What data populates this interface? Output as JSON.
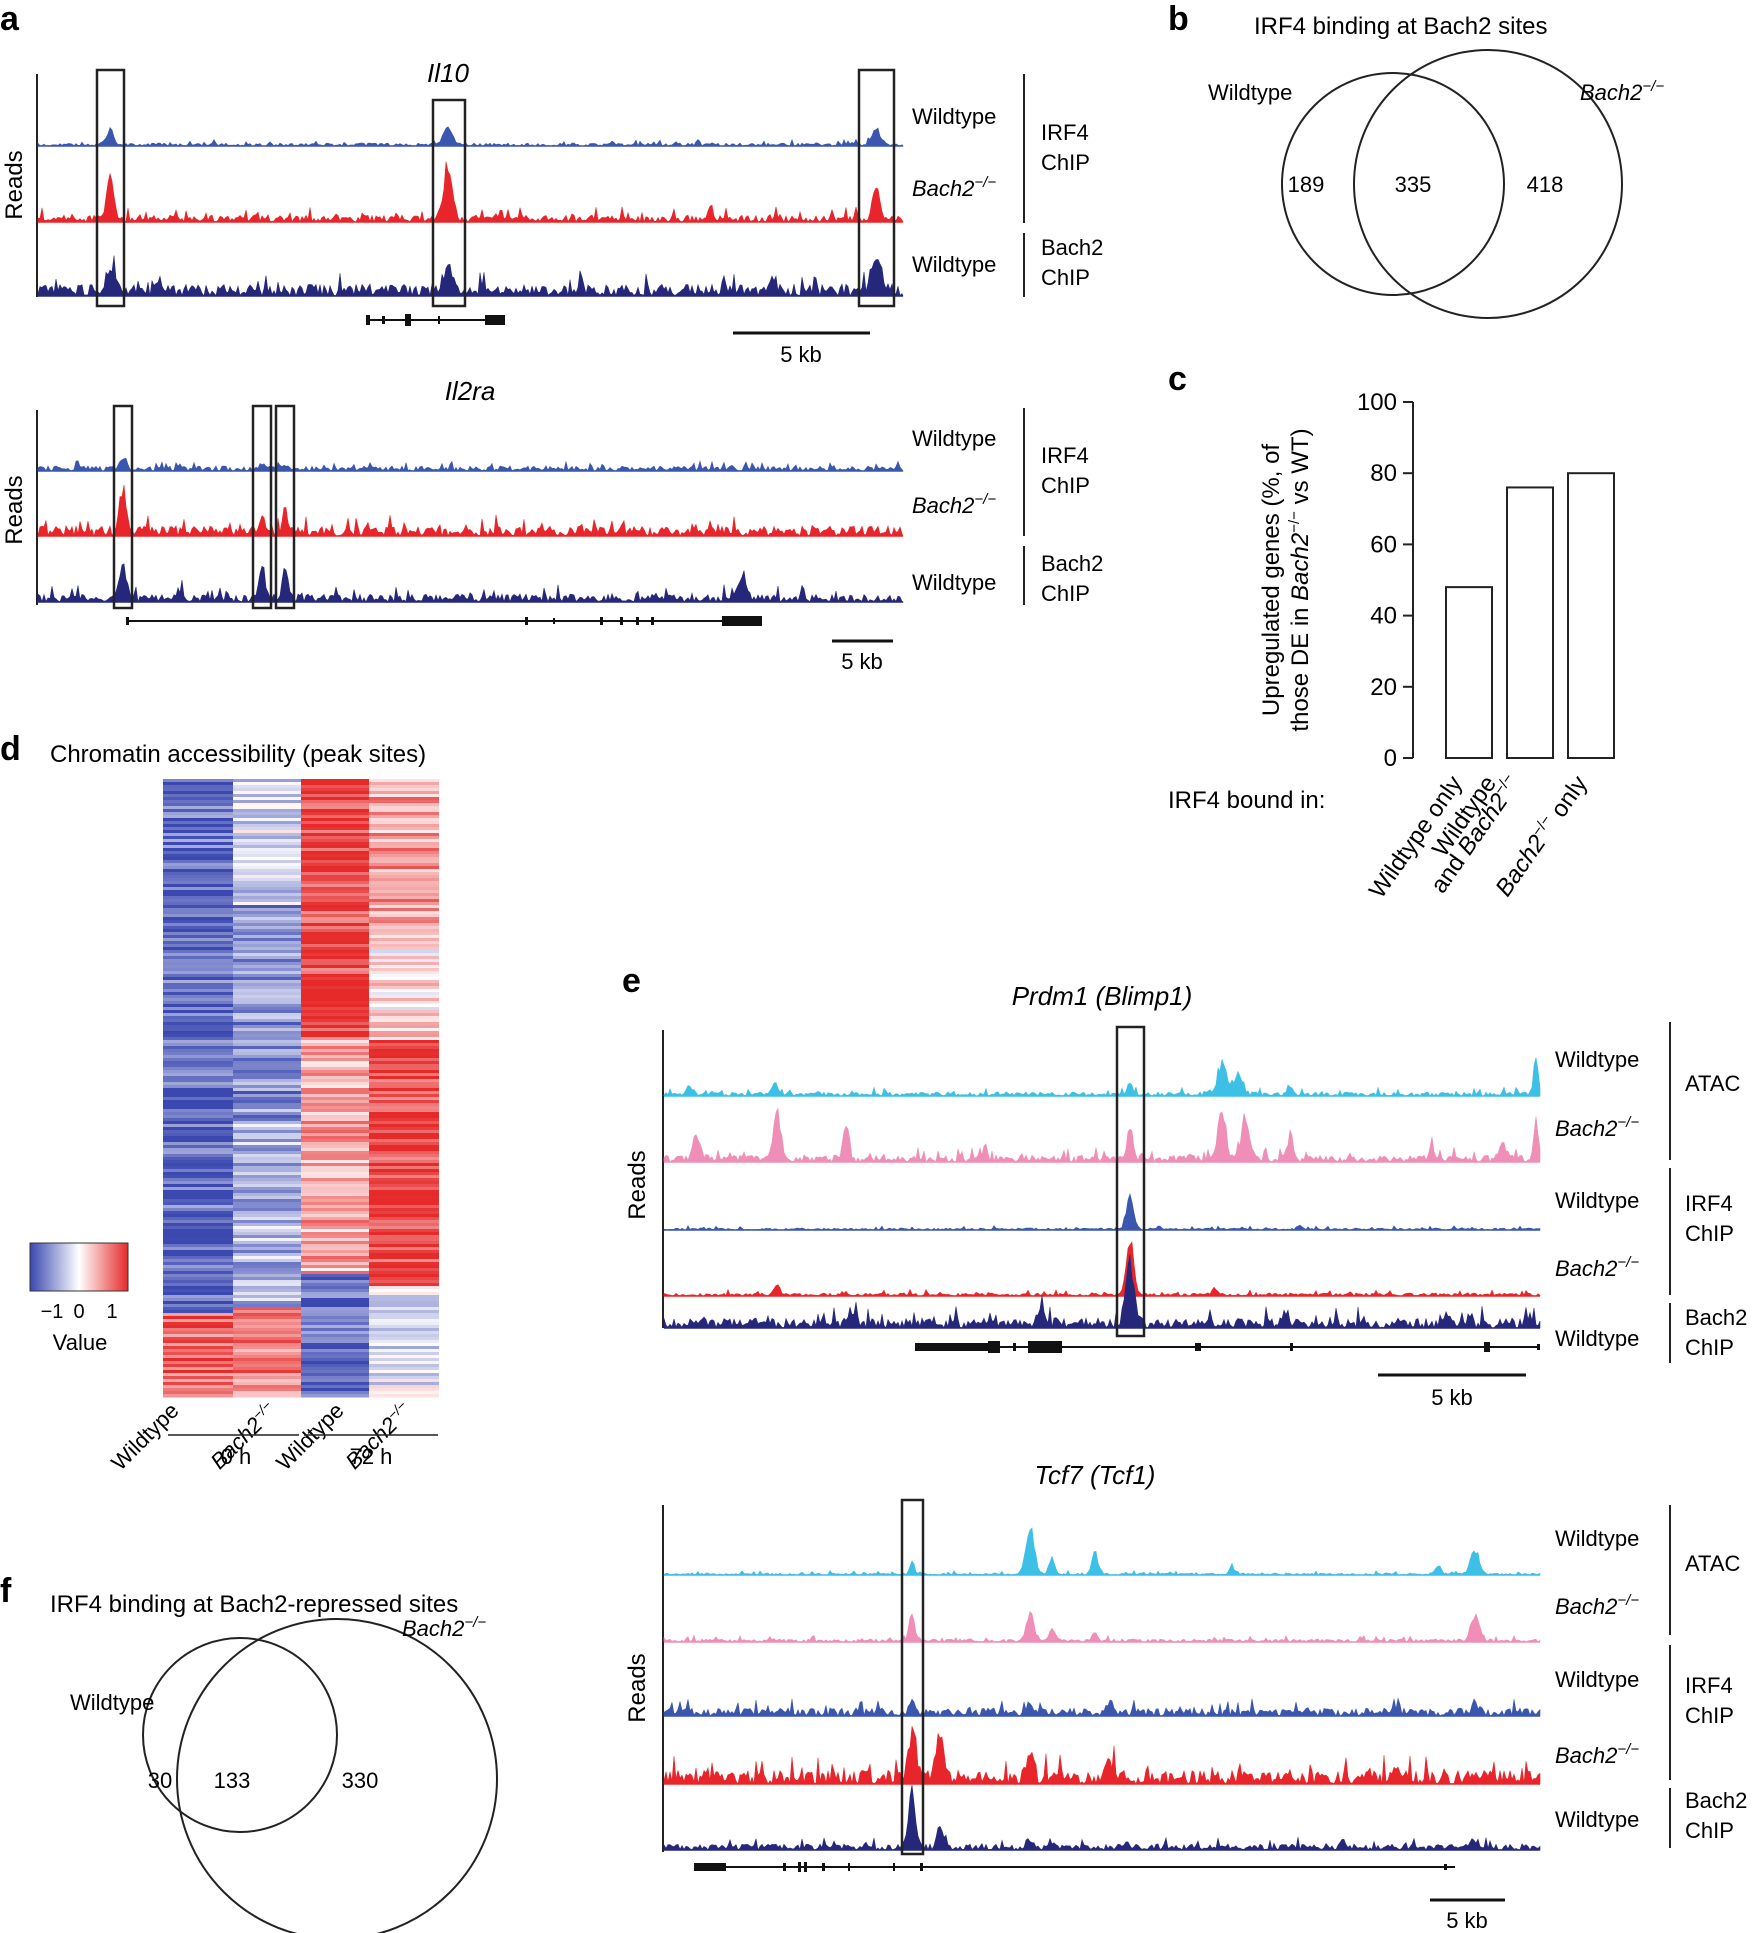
{
  "colors": {
    "wt_irf4": "#3a56ae",
    "ko_irf4": "#e8252a",
    "bach2": "#25287a",
    "atac_wt": "#3cc0e6",
    "atac_ko": "#ef8fb8",
    "heat_low": "#3a48b0",
    "heat_mid": "#ffffff",
    "heat_high": "#e62a2a"
  },
  "panels": {
    "a": "a",
    "b": "b",
    "c": "c",
    "d": "d",
    "e": "e",
    "f": "f"
  },
  "common": {
    "reads": "Reads",
    "wildtype": "Wildtype",
    "bach2_ko": "Bach2",
    "ko_sup": "−/−",
    "irf4": "IRF4",
    "bach2": "Bach2",
    "atac": "ATAC",
    "chip": "ChIP",
    "scale_5kb": "5 kb"
  },
  "panel_a": {
    "gene1": "Il10",
    "gene2": "Il2ra"
  },
  "panel_b": {
    "title": "IRF4 binding at Bach2 sites",
    "set1": "Wildtype",
    "set2_label": "Bach2",
    "only_wt": "189",
    "both": "335",
    "only_ko": "418"
  },
  "panel_c": {
    "ylabel_line1": "Upregulated genes (%, of",
    "ylabel_line2_pre": "those DE in ",
    "ylabel_line2_post": " vs WT)",
    "group_label": "IRF4 bound in:",
    "cat1": "Wildtype only",
    "cat2_line1": "Wildtype",
    "cat2_line2_pre": "and ",
    "cat3_post": " only",
    "yticks": [
      "0",
      "20",
      "40",
      "60",
      "80",
      "100"
    ]
  },
  "chart_data": {
    "type": "bar",
    "categories": [
      "Wildtype only",
      "Wildtype and Bach2−/−",
      "Bach2−/− only"
    ],
    "values": [
      48,
      76,
      80
    ],
    "title": "",
    "xlabel": "IRF4 bound in:",
    "ylabel": "Upregulated genes (%, of those DE in Bach2−/− vs WT)",
    "ylim": [
      0,
      100
    ]
  },
  "panel_d": {
    "title": "Chromatin accessibility (peak sites)",
    "legend_title": "Value",
    "legend_ticks": [
      "−1",
      "0",
      "1"
    ],
    "legend_range": [
      -1.5,
      1.5
    ],
    "col1": "Wildtype",
    "col3": "Wildtype",
    "time1": "0 h",
    "time2": "72 h"
  },
  "panel_e": {
    "gene1": "Prdm1 (Blimp1)",
    "gene2": "Tcf7 (Tcf1)"
  },
  "panel_f": {
    "title": "IRF4 binding at Bach2-repressed sites",
    "set1": "Wildtype",
    "set2_label": "Bach2",
    "only_wt": "30",
    "both": "133",
    "only_ko": "330"
  }
}
